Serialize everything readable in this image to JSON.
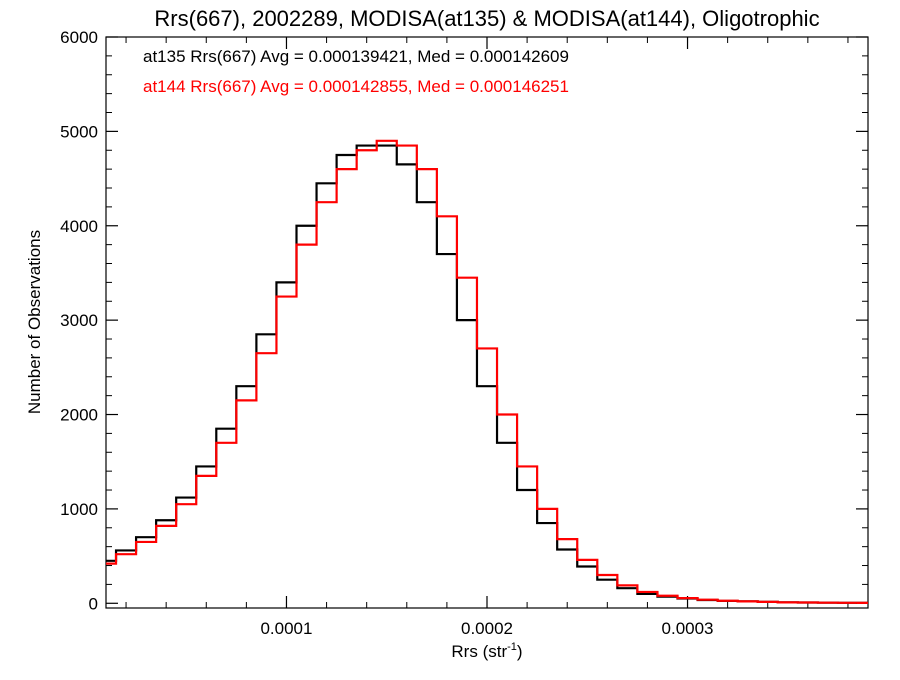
{
  "chart_data": {
    "type": "line",
    "title": "Rrs(667), 2002289, MODISA(at135) & MODISA(at144), Oligotrophic",
    "xlabel": "Rrs (str",
    "xlabel_sup": "-1",
    "xlabel_close": ")",
    "ylabel": "Number of Observations",
    "xlim": [
      1e-05,
      0.00039
    ],
    "ylim": [
      -50,
      6000
    ],
    "x_ticks": [
      {
        "value": 0.0001,
        "label": "0.0001"
      },
      {
        "value": 0.0002,
        "label": "0.0002"
      },
      {
        "value": 0.0003,
        "label": "0.0003"
      }
    ],
    "y_ticks": [
      {
        "value": 0,
        "label": "0"
      },
      {
        "value": 1000,
        "label": "1000"
      },
      {
        "value": 2000,
        "label": "2000"
      },
      {
        "value": 3000,
        "label": "3000"
      },
      {
        "value": 4000,
        "label": "4000"
      },
      {
        "value": 5000,
        "label": "5000"
      },
      {
        "value": 6000,
        "label": "6000"
      }
    ],
    "grid": false,
    "legend_position": "top-left",
    "annotations": [
      {
        "text": "at135 Rrs(667) Avg = 0.000139421, Med = 0.000142609",
        "color": "#000000"
      },
      {
        "text": "at144 Rrs(667) Avg = 0.000142855, Med = 0.000146251",
        "color": "#ff0000"
      }
    ],
    "series": [
      {
        "color": "#000000",
        "x": [
          1e-05,
          2e-05,
          3e-05,
          4e-05,
          5e-05,
          6e-05,
          7e-05,
          8e-05,
          9e-05,
          0.0001,
          0.00011,
          0.00012,
          0.00013,
          0.00014,
          0.00015,
          0.00016,
          0.00017,
          0.00018,
          0.00019,
          0.0002,
          0.00021,
          0.00022,
          0.00023,
          0.00024,
          0.00025,
          0.00026,
          0.00027,
          0.00028,
          0.00029,
          0.0003,
          0.00031,
          0.00032,
          0.00033,
          0.00034,
          0.00035,
          0.00036,
          0.00037,
          0.00038,
          0.00039
        ],
        "values": [
          450,
          560,
          700,
          880,
          1120,
          1450,
          1850,
          2300,
          2850,
          3400,
          4000,
          4450,
          4750,
          4850,
          4850,
          4650,
          4250,
          3700,
          3000,
          2300,
          1700,
          1200,
          850,
          570,
          390,
          250,
          160,
          100,
          70,
          50,
          35,
          25,
          20,
          15,
          10,
          8,
          6,
          5,
          4
        ]
      },
      {
        "color": "#ff0000",
        "x": [
          1e-05,
          2e-05,
          3e-05,
          4e-05,
          5e-05,
          6e-05,
          7e-05,
          8e-05,
          9e-05,
          0.0001,
          0.00011,
          0.00012,
          0.00013,
          0.00014,
          0.00015,
          0.00016,
          0.00017,
          0.00018,
          0.00019,
          0.0002,
          0.00021,
          0.00022,
          0.00023,
          0.00024,
          0.00025,
          0.00026,
          0.00027,
          0.00028,
          0.00029,
          0.0003,
          0.00031,
          0.00032,
          0.00033,
          0.00034,
          0.00035,
          0.00036,
          0.00037,
          0.00038,
          0.00039
        ],
        "values": [
          420,
          520,
          650,
          820,
          1050,
          1350,
          1700,
          2150,
          2650,
          3250,
          3800,
          4250,
          4600,
          4800,
          4900,
          4850,
          4600,
          4100,
          3450,
          2700,
          2000,
          1450,
          1000,
          680,
          460,
          300,
          190,
          120,
          80,
          55,
          38,
          27,
          20,
          15,
          10,
          8,
          6,
          5,
          4
        ]
      }
    ]
  }
}
